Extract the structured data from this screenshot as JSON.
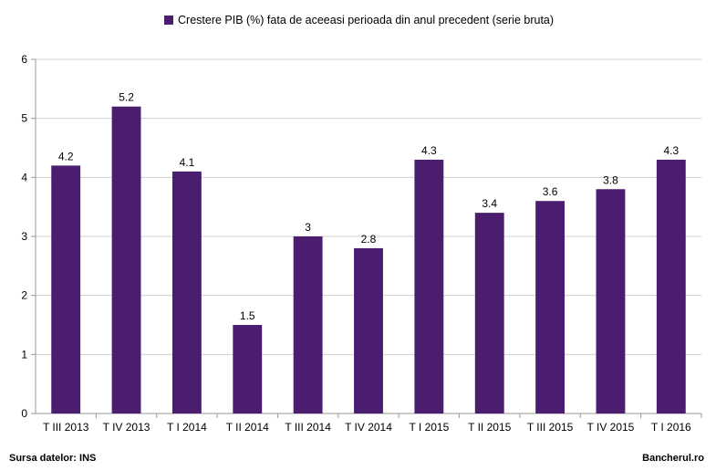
{
  "chart_data": {
    "type": "bar",
    "title": "",
    "xlabel": "",
    "ylabel": "",
    "ylim": [
      0,
      6
    ],
    "yticks": [
      "0",
      "1",
      "2",
      "3",
      "4",
      "5",
      "6"
    ],
    "grid": true,
    "legend_position": "top",
    "categories": [
      "T III 2013",
      "T IV 2013",
      "T I 2014",
      "T II 2014",
      "T III 2014",
      "T IV 2014",
      "T I 2015",
      "T II 2015",
      "T III 2015",
      "T IV 2015",
      "T I 2016"
    ],
    "series": [
      {
        "name": "Crestere PIB (%) fata de aceeasi perioada din anul precedent (serie bruta)",
        "values": [
          4.2,
          5.2,
          4.1,
          1.5,
          3,
          2.8,
          4.3,
          3.4,
          3.6,
          3.8,
          4.3
        ],
        "labels": [
          "4.2",
          "5.2",
          "4.1",
          "1.5",
          "3",
          "2.8",
          "4.3",
          "3.4",
          "3.6",
          "3.8",
          "4.3"
        ],
        "color": "#4a1d6f"
      }
    ]
  },
  "footer": {
    "source": "Sursa datelor: INS",
    "brand": "Bancherul.ro"
  }
}
